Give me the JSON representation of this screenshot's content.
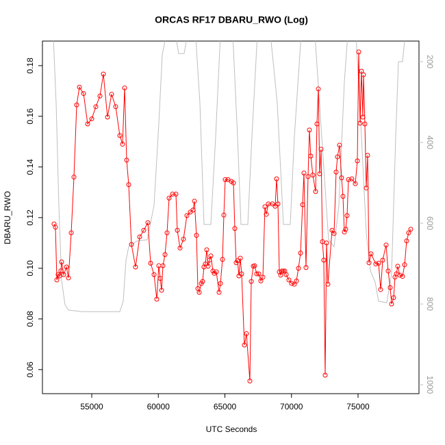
{
  "chart_data": {
    "type": "line",
    "title": "ORCAS RF17 DBARU_RWO (Log)",
    "x_label": "UTC Seconds",
    "y_label": "DBARU_RWO",
    "xlim": [
      51298,
      79576
    ],
    "ylim": [
      0.0505,
      0.1897
    ],
    "y2lim": [
      1022,
      149
    ],
    "xticks": [
      55000,
      60000,
      65000,
      70000,
      75000
    ],
    "yticks": [
      0.06,
      0.08,
      {
        "value": 0.1,
        "label": "0.10"
      },
      0.12,
      0.14,
      0.16,
      0.18
    ],
    "y2ticks": [
      200,
      400,
      600,
      800,
      1000
    ],
    "series": [
      {
        "color": "#ff0000",
        "markers": true,
        "x": [
          52170,
          52275,
          52378,
          52481,
          52584,
          52687,
          52738,
          52892,
          53098,
          53252,
          53458,
          53663,
          53869,
          54075,
          54383,
          54692,
          55000,
          55308,
          55617,
          55874,
          56182,
          56491,
          56799,
          57108,
          57313,
          57468,
          57622,
          57776,
          57982,
          58290,
          58599,
          58907,
          59216,
          59421,
          59678,
          59884,
          60038,
          60141,
          60244,
          60347,
          60501,
          60655,
          60809,
          61066,
          61323,
          61426,
          61632,
          61889,
          62146,
          62403,
          62609,
          62712,
          62866,
          62969,
          63071,
          63226,
          63328,
          63431,
          63534,
          63637,
          63740,
          63843,
          63945,
          64100,
          64202,
          64357,
          64563,
          64665,
          64819,
          64922,
          65025,
          65231,
          65488,
          65642,
          65745,
          65848,
          65950,
          66053,
          66156,
          66259,
          66464,
          66619,
          66876,
          66979,
          67133,
          67236,
          67390,
          67544,
          67698,
          67853,
          68007,
          68110,
          68264,
          68572,
          68778,
          68881,
          68984,
          69087,
          69189,
          69292,
          69395,
          69498,
          69600,
          69806,
          70012,
          70217,
          70371,
          70526,
          70680,
          70834,
          70937,
          71091,
          71246,
          71348,
          71451,
          71605,
          71811,
          71914,
          72017,
          72119,
          72222,
          72325,
          72428,
          72531,
          72634,
          72736,
          73045,
          73199,
          73353,
          73456,
          73610,
          73764,
          73867,
          73970,
          74073,
          74176,
          74279,
          74536,
          74793,
          74947,
          75050,
          75153,
          75256,
          75359,
          75410,
          75513,
          75616,
          75719,
          75822,
          75976,
          76336,
          76541,
          76696,
          76850,
          77107,
          77261,
          77415,
          77518,
          77672,
          77775,
          77878,
          77981,
          78135,
          78341,
          78495,
          78649,
          78803,
          78958
        ],
        "values": [
          0.1175,
          0.1162,
          0.0954,
          0.0975,
          0.097,
          0.099,
          0.1025,
          0.0975,
          0.1005,
          0.0962,
          0.114,
          0.136,
          0.1645,
          0.1715,
          0.169,
          0.157,
          0.159,
          0.1638,
          0.168,
          0.1767,
          0.1597,
          0.1687,
          0.1638,
          0.1524,
          0.149,
          0.1712,
          0.1427,
          0.133,
          0.1094,
          0.1005,
          0.1124,
          0.115,
          0.118,
          0.102,
          0.0975,
          0.0878,
          0.101,
          0.096,
          0.0913,
          0.101,
          0.1054,
          0.114,
          0.1277,
          0.1293,
          0.1293,
          0.115,
          0.108,
          0.1115,
          0.1208,
          0.1222,
          0.123,
          0.1265,
          0.113,
          0.092,
          0.0905,
          0.094,
          0.0948,
          0.1005,
          0.1017,
          0.1073,
          0.1008,
          0.1032,
          0.1049,
          0.0989,
          0.098,
          0.0986,
          0.0905,
          0.094,
          0.1035,
          0.121,
          0.135,
          0.135,
          0.1343,
          0.1337,
          0.1157,
          0.1022,
          0.103,
          0.097,
          0.104,
          0.0978,
          0.0697,
          0.0742,
          0.0555,
          0.0948,
          0.1008,
          0.101,
          0.0978,
          0.0978,
          0.095,
          0.0965,
          0.1243,
          0.1213,
          0.1254,
          0.1254,
          0.1245,
          0.1353,
          0.1254,
          0.0986,
          0.0973,
          0.0989,
          0.0989,
          0.0989,
          0.0975,
          0.0954,
          0.094,
          0.0937,
          0.095,
          0.1,
          0.106,
          0.1251,
          0.1376,
          0.1003,
          0.1362,
          0.1546,
          0.1443,
          0.1368,
          0.1303,
          0.157,
          0.1708,
          0.1373,
          0.147,
          0.1105,
          0.1032,
          0.0578,
          0.11,
          0.0937,
          0.115,
          0.1137,
          0.138,
          0.144,
          0.1486,
          0.1357,
          0.1284,
          0.1143,
          0.1154,
          0.1208,
          0.135,
          0.1353,
          0.1334,
          0.1424,
          0.1854,
          0.1573,
          0.1778,
          0.1597,
          0.1764,
          0.157,
          0.1317,
          0.1446,
          0.1022,
          0.1057,
          0.1017,
          0.102,
          0.0916,
          0.1032,
          0.1092,
          0.0989,
          0.0924,
          0.0859,
          0.0884,
          0.0965,
          0.0978,
          0.1008,
          0.0973,
          0.0968,
          0.1014,
          0.1108,
          0.114,
          0.1154
        ]
      },
      {
        "color": "#bebebe",
        "axis": "y2",
        "markers": false,
        "x": [
          52120,
          52326,
          52532,
          52738,
          52995,
          53252,
          54280,
          55823,
          57108,
          57365,
          57571,
          57776,
          58393,
          59164,
          59678,
          60038,
          60295,
          60604,
          61272,
          61529,
          61940,
          62197,
          62814,
          63123,
          63431,
          63945,
          64305,
          64665,
          65591,
          65950,
          66207,
          66721,
          67030,
          67441,
          68418,
          68932,
          69395,
          69909,
          70217,
          70731,
          71760,
          72274,
          72788,
          73199,
          73559,
          73970,
          74227,
          74844,
          75256,
          75616,
          75925,
          76285,
          76541,
          77158,
          77518,
          77827,
          78032,
          78341,
          78546,
          78752
        ],
        "values": [
          141,
          302,
          556,
          742,
          802,
          815,
          819,
          819,
          819,
          793,
          692,
          658,
          644,
          641,
          556,
          353,
          183,
          132,
          132,
          180,
          180,
          132,
          141,
          302,
          603,
          603,
          386,
          132,
          132,
          386,
          603,
          603,
          386,
          132,
          132,
          302,
          603,
          603,
          386,
          132,
          132,
          386,
          641,
          658,
          556,
          251,
          132,
          132,
          386,
          624,
          717,
          746,
          793,
          797,
          725,
          386,
          200,
          200,
          132,
          98
        ]
      }
    ]
  }
}
